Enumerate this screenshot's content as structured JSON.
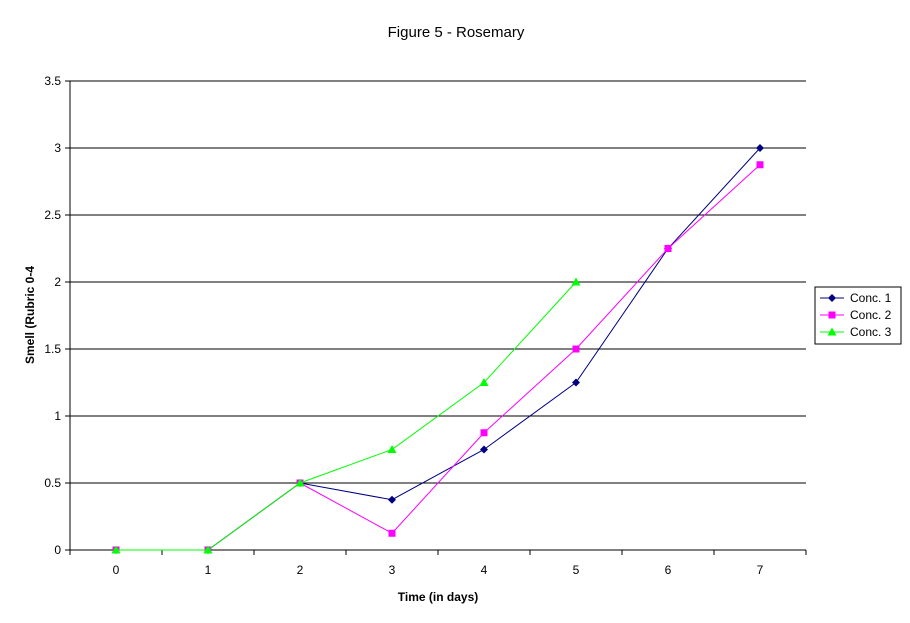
{
  "chart_data": {
    "type": "line",
    "title": "Figure 5 - Rosemary",
    "xlabel": "Time (in days)",
    "ylabel": "Smell (Rubric 0-4",
    "x": [
      0,
      1,
      2,
      3,
      4,
      5,
      6,
      7
    ],
    "x_tick_labels": [
      "0",
      "1",
      "2",
      "3",
      "4",
      "5",
      "6",
      "7"
    ],
    "ylim": [
      0,
      3.5
    ],
    "y_ticks": [
      0,
      0.5,
      1,
      1.5,
      2,
      2.5,
      3,
      3.5
    ],
    "y_tick_labels": [
      "0",
      "0.5",
      "1",
      "1.5",
      "2",
      "2.5",
      "3",
      "3.5"
    ],
    "grid": "horizontal",
    "legend_position": "right",
    "series": [
      {
        "name": "Conc. 1",
        "color": "#000080",
        "marker": "diamond",
        "values": [
          0,
          0,
          0.5,
          0.375,
          0.75,
          1.25,
          2.25,
          3.0
        ]
      },
      {
        "name": "Conc. 2",
        "color": "#ff00ff",
        "marker": "square",
        "values": [
          0,
          0,
          0.5,
          0.125,
          0.875,
          1.5,
          2.25,
          2.875
        ]
      },
      {
        "name": "Conc. 3",
        "color": "#00ff00",
        "marker": "triangle",
        "values": [
          0,
          0,
          0.5,
          0.75,
          1.25,
          2.0,
          null,
          null
        ]
      }
    ]
  }
}
